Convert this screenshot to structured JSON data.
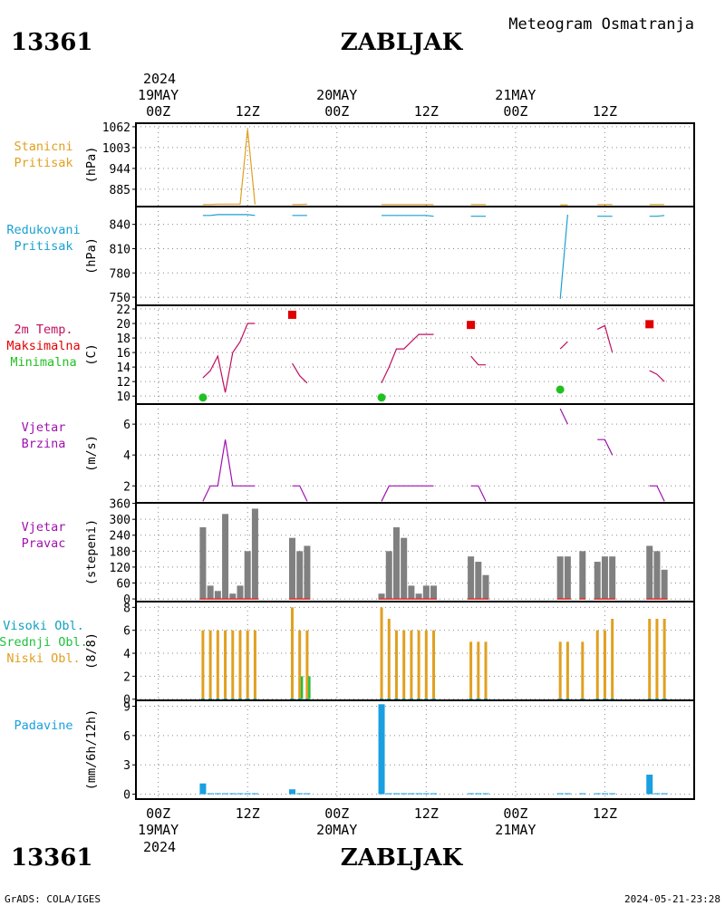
{
  "header": {
    "station_id": "13361",
    "station_name": "ZABLJAK",
    "product": "Meteogram Osmatranja"
  },
  "footer": {
    "station_id": "13361",
    "station_name": "ZABLJAK",
    "credit": "GrADS: COLA/IGES",
    "timestamp": "2024-05-21-23:28"
  },
  "time_axis": {
    "start": "2024-05-19T00:00Z",
    "end": "2024-05-21T23:00Z",
    "top_year": "2024",
    "bottom_year": "2024",
    "ticks": [
      {
        "hour": 0,
        "hour_label": "00Z",
        "date_label": "19MAY"
      },
      {
        "hour": 12,
        "hour_label": "12Z",
        "date_label": ""
      },
      {
        "hour": 24,
        "hour_label": "00Z",
        "date_label": "20MAY"
      },
      {
        "hour": 36,
        "hour_label": "12Z",
        "date_label": ""
      },
      {
        "hour": 48,
        "hour_label": "00Z",
        "date_label": "21MAY"
      },
      {
        "hour": 60,
        "hour_label": "12Z",
        "date_label": ""
      }
    ]
  },
  "colors": {
    "pressure_station": "#e0a020",
    "pressure_reduced": "#1aa0d0",
    "temp": "#c01060",
    "tmax": "#e00000",
    "tmin": "#20c020",
    "wind_speed": "#a010b0",
    "wind_dir": "#808080",
    "wind_dir_base": "#e03030",
    "cloud_high": "#10a0c0",
    "cloud_mid": "#20c040",
    "cloud_low": "#e0a020",
    "precip": "#1aa0e0"
  },
  "chart_data": [
    {
      "id": "p1",
      "type": "line",
      "panel_labels": [
        {
          "text": "Stanicni",
          "color": "#e0a020"
        },
        {
          "text": "Pritisak",
          "color": "#e0a020"
        }
      ],
      "ylabel": "(hPa)",
      "ylim": [
        836,
        1072
      ],
      "yticks": [
        885,
        944,
        1003,
        1062
      ],
      "series": [
        {
          "color": "#e0a020",
          "segments": [
            [
              [
                6,
                842
              ],
              [
                7,
                842
              ],
              [
                8,
                843
              ],
              [
                9,
                843
              ],
              [
                10,
                843
              ],
              [
                11,
                843
              ],
              [
                12,
                1055
              ],
              [
                13,
                842
              ]
            ],
            [
              [
                18,
                842
              ],
              [
                19,
                842
              ],
              [
                20,
                843
              ]
            ],
            [
              [
                30,
                842
              ],
              [
                31,
                842
              ],
              [
                32,
                842
              ],
              [
                33,
                842
              ],
              [
                34,
                842
              ],
              [
                35,
                842
              ],
              [
                36,
                842
              ],
              [
                37,
                842
              ]
            ],
            [
              [
                42,
                842
              ],
              [
                43,
                842
              ],
              [
                44,
                842
              ]
            ],
            [
              [
                54,
                841
              ],
              [
                55,
                841
              ]
            ],
            [
              [
                59,
                842
              ],
              [
                60,
                842
              ],
              [
                61,
                842
              ]
            ],
            [
              [
                66,
                842
              ],
              [
                67,
                842
              ],
              [
                68,
                842
              ]
            ]
          ]
        }
      ]
    },
    {
      "id": "p2",
      "type": "line",
      "panel_labels": [
        {
          "text": "Redukovani",
          "color": "#1aa0d0"
        },
        {
          "text": "Pritisak",
          "color": "#1aa0d0"
        }
      ],
      "ylabel": "(hPa)",
      "ylim": [
        740,
        862
      ],
      "yticks": [
        750,
        780,
        810,
        840
      ],
      "series": [
        {
          "color": "#1aa0d0",
          "segments": [
            [
              [
                6,
                851
              ],
              [
                7,
                851
              ],
              [
                8,
                852
              ],
              [
                9,
                852
              ],
              [
                10,
                852
              ],
              [
                11,
                852
              ],
              [
                12,
                852
              ],
              [
                13,
                851
              ]
            ],
            [
              [
                18,
                851
              ],
              [
                19,
                851
              ],
              [
                20,
                851
              ]
            ],
            [
              [
                30,
                851
              ],
              [
                31,
                851
              ],
              [
                32,
                851
              ],
              [
                33,
                851
              ],
              [
                34,
                851
              ],
              [
                35,
                851
              ],
              [
                36,
                851
              ],
              [
                37,
                850
              ]
            ],
            [
              [
                42,
                850
              ],
              [
                43,
                850
              ],
              [
                44,
                850
              ]
            ],
            [
              [
                54,
                748
              ],
              [
                55,
                852
              ]
            ],
            [
              [
                59,
                850
              ],
              [
                60,
                850
              ],
              [
                61,
                850
              ]
            ],
            [
              [
                66,
                850
              ],
              [
                67,
                850
              ],
              [
                68,
                851
              ]
            ]
          ]
        }
      ]
    },
    {
      "id": "p3",
      "type": "line",
      "panel_labels": [
        {
          "text": "2m Temp.",
          "color": "#c01060"
        },
        {
          "text": "Maksimalna",
          "color": "#e00000"
        },
        {
          "text": "Minimalna",
          "color": "#20c020"
        }
      ],
      "ylabel": "(C)",
      "ylim": [
        8.9,
        22.5
      ],
      "yticks": [
        10,
        12,
        14,
        16,
        18,
        20,
        22
      ],
      "series": [
        {
          "color": "#c01060",
          "segments": [
            [
              [
                6,
                12.5
              ],
              [
                7,
                13.5
              ],
              [
                8,
                15.5
              ],
              [
                9,
                10.5
              ],
              [
                10,
                16
              ],
              [
                11,
                17.5
              ],
              [
                12,
                20
              ],
              [
                13,
                20
              ]
            ],
            [
              [
                18,
                14.5
              ],
              [
                19,
                12.8
              ],
              [
                20,
                11.8
              ]
            ],
            [
              [
                30,
                11.8
              ],
              [
                31,
                14
              ],
              [
                32,
                16.5
              ],
              [
                33,
                16.5
              ],
              [
                34,
                17.5
              ],
              [
                35,
                18.5
              ],
              [
                36,
                18.5
              ],
              [
                37,
                18.5
              ]
            ],
            [
              [
                42,
                15.5
              ],
              [
                43,
                14.3
              ],
              [
                44,
                14.3
              ]
            ],
            [
              [
                54,
                16.5
              ],
              [
                55,
                17.5
              ]
            ],
            [
              [
                59,
                19.2
              ],
              [
                60,
                19.7
              ],
              [
                61,
                16
              ]
            ],
            [
              [
                66,
                13.5
              ],
              [
                67,
                13
              ],
              [
                68,
                12
              ]
            ]
          ]
        }
      ],
      "tmax": [
        {
          "x": 18,
          "y": 21.2
        },
        {
          "x": 42,
          "y": 19.8
        },
        {
          "x": 66,
          "y": 19.9
        }
      ],
      "tmin": [
        {
          "x": 6,
          "y": 9.8
        },
        {
          "x": 30,
          "y": 9.8
        },
        {
          "x": 54,
          "y": 10.9
        }
      ]
    },
    {
      "id": "p4",
      "type": "line",
      "panel_labels": [
        {
          "text": "Vjetar",
          "color": "#a010b0"
        },
        {
          "text": "Brzina",
          "color": "#a010b0"
        }
      ],
      "ylabel": "(m/s)",
      "ylim": [
        0.9,
        7.3
      ],
      "yticks": [
        2,
        4,
        6
      ],
      "series": [
        {
          "color": "#a010b0",
          "segments": [
            [
              [
                6,
                1
              ],
              [
                7,
                2
              ],
              [
                8,
                2
              ],
              [
                9,
                5
              ],
              [
                10,
                2
              ],
              [
                11,
                2
              ],
              [
                12,
                2
              ],
              [
                13,
                2
              ]
            ],
            [
              [
                18,
                2
              ],
              [
                19,
                2
              ],
              [
                20,
                1
              ]
            ],
            [
              [
                30,
                1
              ],
              [
                31,
                2
              ],
              [
                32,
                2
              ],
              [
                33,
                2
              ],
              [
                34,
                2
              ],
              [
                35,
                2
              ],
              [
                36,
                2
              ],
              [
                37,
                2
              ]
            ],
            [
              [
                42,
                2
              ],
              [
                43,
                2
              ],
              [
                44,
                1
              ]
            ],
            [
              [
                54,
                7
              ],
              [
                55,
                6
              ]
            ],
            [
              [
                59,
                5
              ],
              [
                60,
                5
              ],
              [
                61,
                4
              ]
            ],
            [
              [
                66,
                2
              ],
              [
                67,
                2
              ],
              [
                68,
                1
              ]
            ]
          ]
        }
      ]
    },
    {
      "id": "p5",
      "type": "bar",
      "panel_labels": [
        {
          "text": "Vjetar",
          "color": "#a010b0"
        },
        {
          "text": "Pravac",
          "color": "#a010b0"
        }
      ],
      "ylabel": "(stepeni)",
      "ylim": [
        -10,
        362
      ],
      "yticks": [
        0,
        60,
        120,
        180,
        240,
        300,
        360
      ],
      "bar_color": "#808080",
      "base_color": "#e03030",
      "bar_groups": [
        [
          [
            6,
            270
          ],
          [
            7,
            50
          ],
          [
            8,
            30
          ],
          [
            9,
            320
          ],
          [
            10,
            20
          ],
          [
            11,
            50
          ],
          [
            12,
            180
          ],
          [
            13,
            340
          ]
        ],
        [
          [
            18,
            230
          ],
          [
            19,
            180
          ],
          [
            20,
            200
          ]
        ],
        [
          [
            30,
            20
          ],
          [
            31,
            180
          ],
          [
            32,
            270
          ],
          [
            33,
            230
          ],
          [
            34,
            50
          ],
          [
            35,
            20
          ],
          [
            36,
            50
          ],
          [
            37,
            50
          ]
        ],
        [
          [
            42,
            160
          ],
          [
            43,
            140
          ],
          [
            44,
            90
          ]
        ],
        [
          [
            54,
            160
          ],
          [
            55,
            160
          ]
        ],
        [
          [
            57,
            180
          ]
        ],
        [
          [
            59,
            140
          ],
          [
            60,
            160
          ],
          [
            61,
            160
          ]
        ],
        [
          [
            66,
            200
          ],
          [
            67,
            180
          ],
          [
            68,
            110
          ]
        ]
      ]
    },
    {
      "id": "p6",
      "type": "bar",
      "panel_labels": [
        {
          "text": "Visoki Obl.",
          "color": "#10a0c0"
        },
        {
          "text": "Srednji Obl.",
          "color": "#20c040"
        },
        {
          "text": "Niski Obl.",
          "color": "#e0a020"
        }
      ],
      "ylabel": "(8/8)",
      "ylim": [
        -0.1,
        8.5
      ],
      "yticks": [
        0,
        2,
        4,
        6,
        8
      ],
      "low": [
        [
          6,
          6
        ],
        [
          7,
          6
        ],
        [
          8,
          6
        ],
        [
          9,
          6
        ],
        [
          10,
          6
        ],
        [
          11,
          6
        ],
        [
          12,
          6
        ],
        [
          13,
          6
        ],
        [
          18,
          8
        ],
        [
          19,
          6
        ],
        [
          20,
          6
        ],
        [
          30,
          8
        ],
        [
          31,
          7
        ],
        [
          32,
          6
        ],
        [
          33,
          6
        ],
        [
          34,
          6
        ],
        [
          35,
          6
        ],
        [
          36,
          6
        ],
        [
          37,
          6
        ],
        [
          42,
          5
        ],
        [
          43,
          5
        ],
        [
          44,
          5
        ],
        [
          54,
          5
        ],
        [
          55,
          5
        ],
        [
          57,
          5
        ],
        [
          59,
          6
        ],
        [
          60,
          6
        ],
        [
          61,
          7
        ],
        [
          66,
          7
        ],
        [
          67,
          7
        ],
        [
          68,
          7
        ]
      ],
      "mid": [
        [
          19,
          2
        ],
        [
          20,
          2
        ]
      ],
      "high": []
    },
    {
      "id": "p7",
      "type": "bar",
      "panel_labels": [
        {
          "text": "Padavine",
          "color": "#1aa0e0"
        }
      ],
      "ylabel": "(mm/6h/12h)",
      "ylim": [
        -0.5,
        9.6
      ],
      "yticks": [
        0,
        3,
        6,
        9
      ],
      "bar_color": "#1aa0e0",
      "bars": [
        [
          6,
          1.1
        ],
        [
          7,
          0.1
        ],
        [
          8,
          0.1
        ],
        [
          9,
          0.1
        ],
        [
          10,
          0.1
        ],
        [
          11,
          0.1
        ],
        [
          12,
          0.1
        ],
        [
          13,
          0.1
        ],
        [
          18,
          0.5
        ],
        [
          19,
          0.1
        ],
        [
          20,
          0.1
        ],
        [
          30,
          9.2
        ],
        [
          31,
          0.1
        ],
        [
          32,
          0.1
        ],
        [
          33,
          0.1
        ],
        [
          34,
          0.1
        ],
        [
          35,
          0.1
        ],
        [
          36,
          0.1
        ],
        [
          37,
          0.1
        ],
        [
          42,
          0.1
        ],
        [
          43,
          0.1
        ],
        [
          44,
          0.1
        ],
        [
          54,
          0.1
        ],
        [
          55,
          0.1
        ],
        [
          57,
          0.1
        ],
        [
          59,
          0.1
        ],
        [
          60,
          0.1
        ],
        [
          61,
          0.1
        ],
        [
          66,
          2.0
        ],
        [
          67,
          0.1
        ],
        [
          68,
          0.1
        ]
      ]
    }
  ]
}
